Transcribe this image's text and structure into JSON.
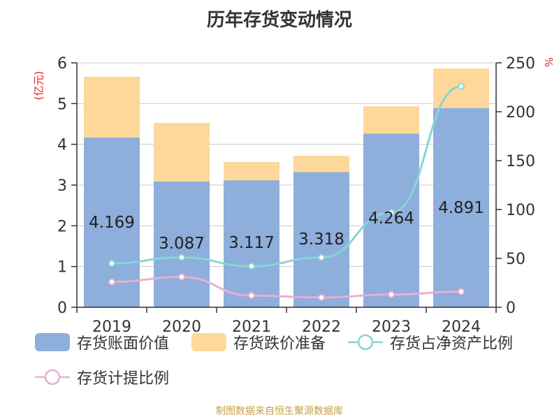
{
  "chart_data": {
    "type": "bar",
    "title": "历年存货变动情况",
    "categories": [
      "2019",
      "2020",
      "2021",
      "2022",
      "2023",
      "2024"
    ],
    "y_left": {
      "unit": "(亿元)",
      "ylim": [
        0,
        6
      ],
      "ticks": [
        0,
        1,
        2,
        3,
        4,
        5,
        6
      ]
    },
    "y_right": {
      "unit": "%",
      "ylim": [
        0,
        250
      ],
      "ticks": [
        0,
        50,
        100,
        150,
        200,
        250
      ]
    },
    "series": [
      {
        "name": "存货账面价值",
        "type": "bar-stacked",
        "axis": "left",
        "color": "#8eaedb",
        "values": [
          4.169,
          3.087,
          3.117,
          3.318,
          4.264,
          4.891
        ],
        "labels": [
          "4.169",
          "3.087",
          "3.117",
          "3.318",
          "4.264",
          "4.891"
        ]
      },
      {
        "name": "存货跌价准备",
        "type": "bar-stacked",
        "axis": "left",
        "color": "#fdd89a",
        "values": [
          1.49,
          1.44,
          0.45,
          0.4,
          0.67,
          0.97
        ]
      },
      {
        "name": "存货占净资产比例",
        "type": "line",
        "axis": "right",
        "color": "#86d6d6",
        "values": [
          45,
          51,
          42,
          51,
          97,
          226
        ]
      },
      {
        "name": "存货计提比例",
        "type": "line",
        "axis": "right",
        "color": "#e6b0d4",
        "values": [
          26,
          31,
          12,
          10,
          13,
          16
        ]
      }
    ],
    "grid": true,
    "legend_position": "bottom"
  },
  "source": "制图数据来自恒生聚源数据库"
}
